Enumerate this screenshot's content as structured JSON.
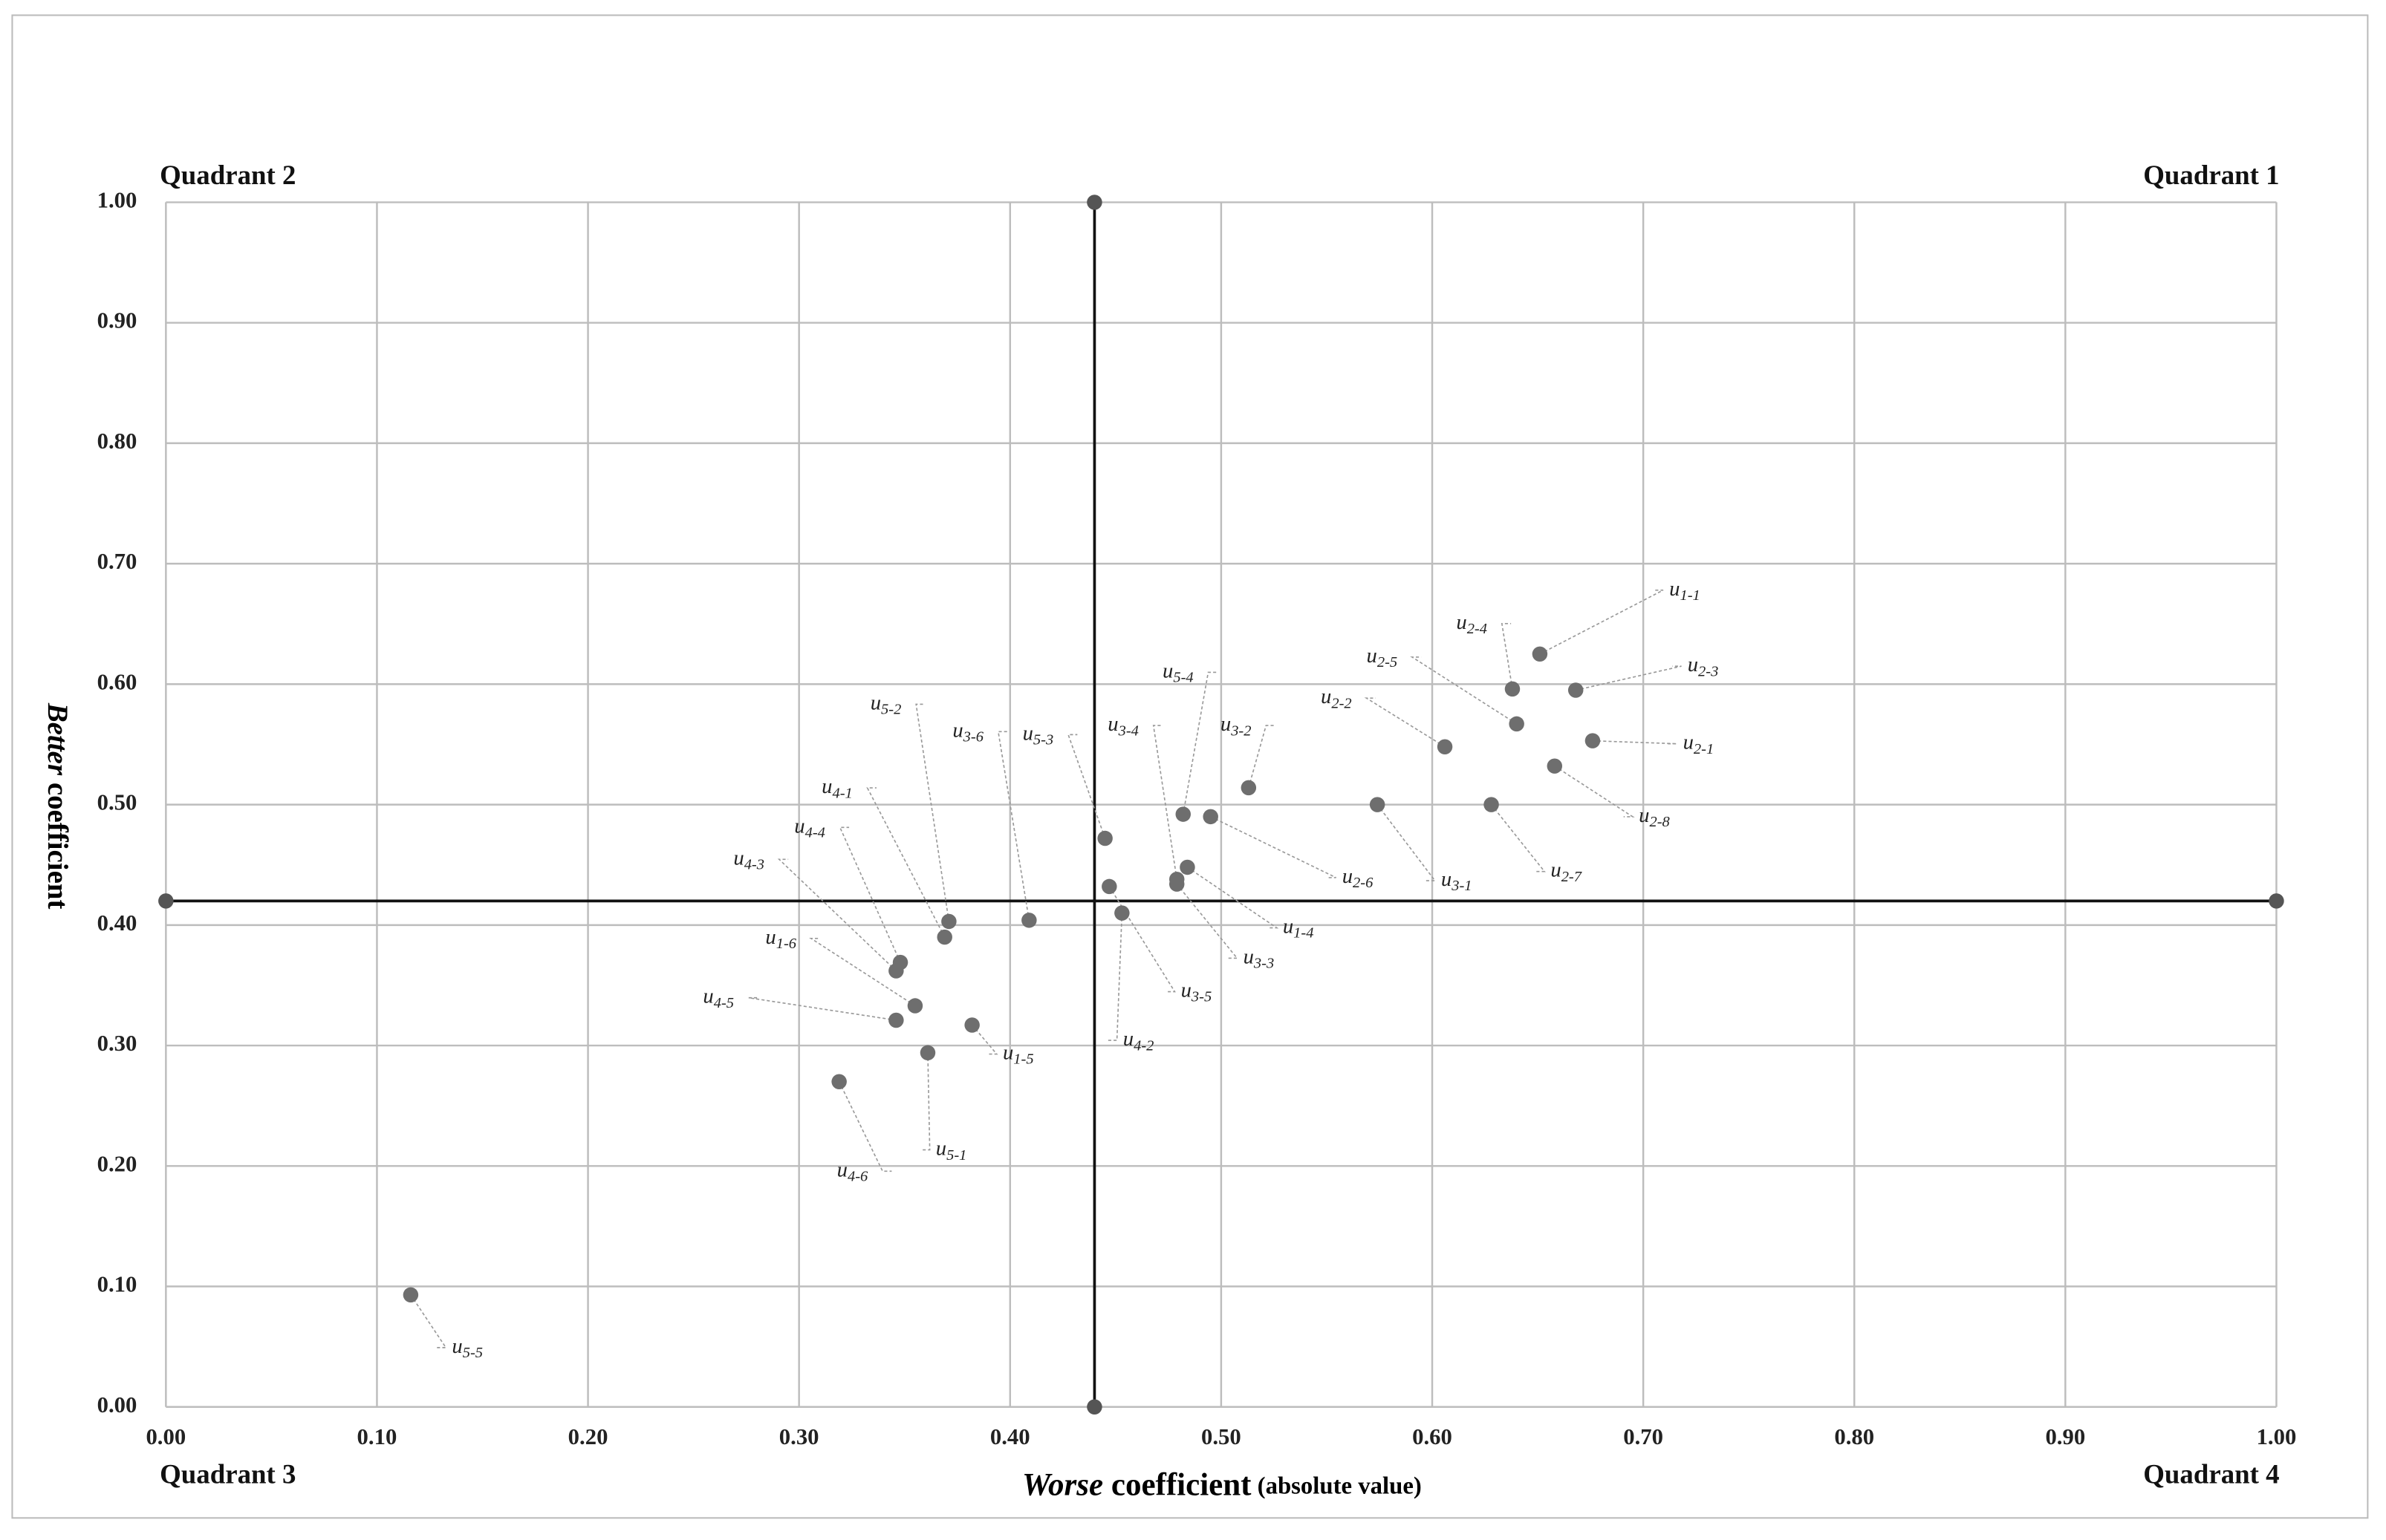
{
  "chart_data": {
    "type": "scatter",
    "x_label": {
      "italic": "Worse",
      "rest": " coefficient",
      "small": " (absolute value)"
    },
    "y_label": {
      "italic": "Better",
      "rest": " coefficient"
    },
    "quadrants": [
      "Quadrant 1",
      "Quadrant 2",
      "Quadrant 3",
      "Quadrant 4"
    ],
    "xlim": [
      0,
      1
    ],
    "ylim": [
      0,
      1
    ],
    "xticks": [
      {
        "value": 0,
        "label": "0.00"
      },
      {
        "value": 0.1,
        "label": "0.10"
      },
      {
        "value": 0.2,
        "label": "0.20"
      },
      {
        "value": 0.3,
        "label": "0.30"
      },
      {
        "value": 0.4,
        "label": "0.40"
      },
      {
        "value": 0.5,
        "label": "0.50"
      },
      {
        "value": 0.6,
        "label": "0.60"
      },
      {
        "value": 0.7,
        "label": "0.70"
      },
      {
        "value": 0.8,
        "label": "0.80"
      },
      {
        "value": 0.9,
        "label": "0.90"
      },
      {
        "value": 1,
        "label": "1.00"
      }
    ],
    "yticks": [
      {
        "value": 0,
        "label": "0.00"
      },
      {
        "value": 0.1,
        "label": "0.10"
      },
      {
        "value": 0.2,
        "label": "0.20"
      },
      {
        "value": 0.3,
        "label": "0.30"
      },
      {
        "value": 0.4,
        "label": "0.40"
      },
      {
        "value": 0.5,
        "label": "0.50"
      },
      {
        "value": 0.6,
        "label": "0.60"
      },
      {
        "value": 0.7,
        "label": "0.70"
      },
      {
        "value": 0.8,
        "label": "0.80"
      },
      {
        "value": 0.9,
        "label": "0.90"
      },
      {
        "value": 1,
        "label": "1.00"
      }
    ],
    "grid": true,
    "color": "#6e6e6e",
    "divider_x": 0.44,
    "divider_y": 0.42,
    "labels": [
      "u",
      "u",
      "u",
      "u",
      "u",
      "u",
      "u",
      "u",
      "u",
      "u",
      "u",
      "u",
      "u",
      "u",
      "u",
      "u",
      "u",
      "u",
      "u",
      "u",
      "u",
      "u",
      "u",
      "u",
      "u",
      "u",
      "u",
      "u",
      "u"
    ],
    "label_subs": [
      "1-1",
      "2-4",
      "2-3",
      "2-5",
      "2-2",
      "2-1",
      "2-8",
      "2-7",
      "3-1",
      "3-2",
      "2-6",
      "5-4",
      "1-4",
      "3-4",
      "3-3",
      "5-3",
      "3-5",
      "4-2",
      "3-6",
      "5-2",
      "4-1",
      "4-4",
      "4-3",
      "1-6",
      "4-5",
      "1-5",
      "5-1",
      "4-6",
      "5-5"
    ],
    "x": [
      0.651,
      0.638,
      0.668,
      0.64,
      0.606,
      0.676,
      0.658,
      0.628,
      0.574,
      0.513,
      0.495,
      0.482,
      0.484,
      0.479,
      0.479,
      0.445,
      0.447,
      0.453,
      0.409,
      0.371,
      0.369,
      0.348,
      0.346,
      0.355,
      0.346,
      0.382,
      0.361,
      0.319,
      0.116
    ],
    "values": [
      0.625,
      0.596,
      0.595,
      0.567,
      0.548,
      0.553,
      0.532,
      0.5,
      0.5,
      0.514,
      0.49,
      0.492,
      0.448,
      0.438,
      0.434,
      0.472,
      0.432,
      0.41,
      0.404,
      0.403,
      0.39,
      0.369,
      0.362,
      0.333,
      0.321,
      0.317,
      0.294,
      0.27,
      0.093
    ]
  }
}
